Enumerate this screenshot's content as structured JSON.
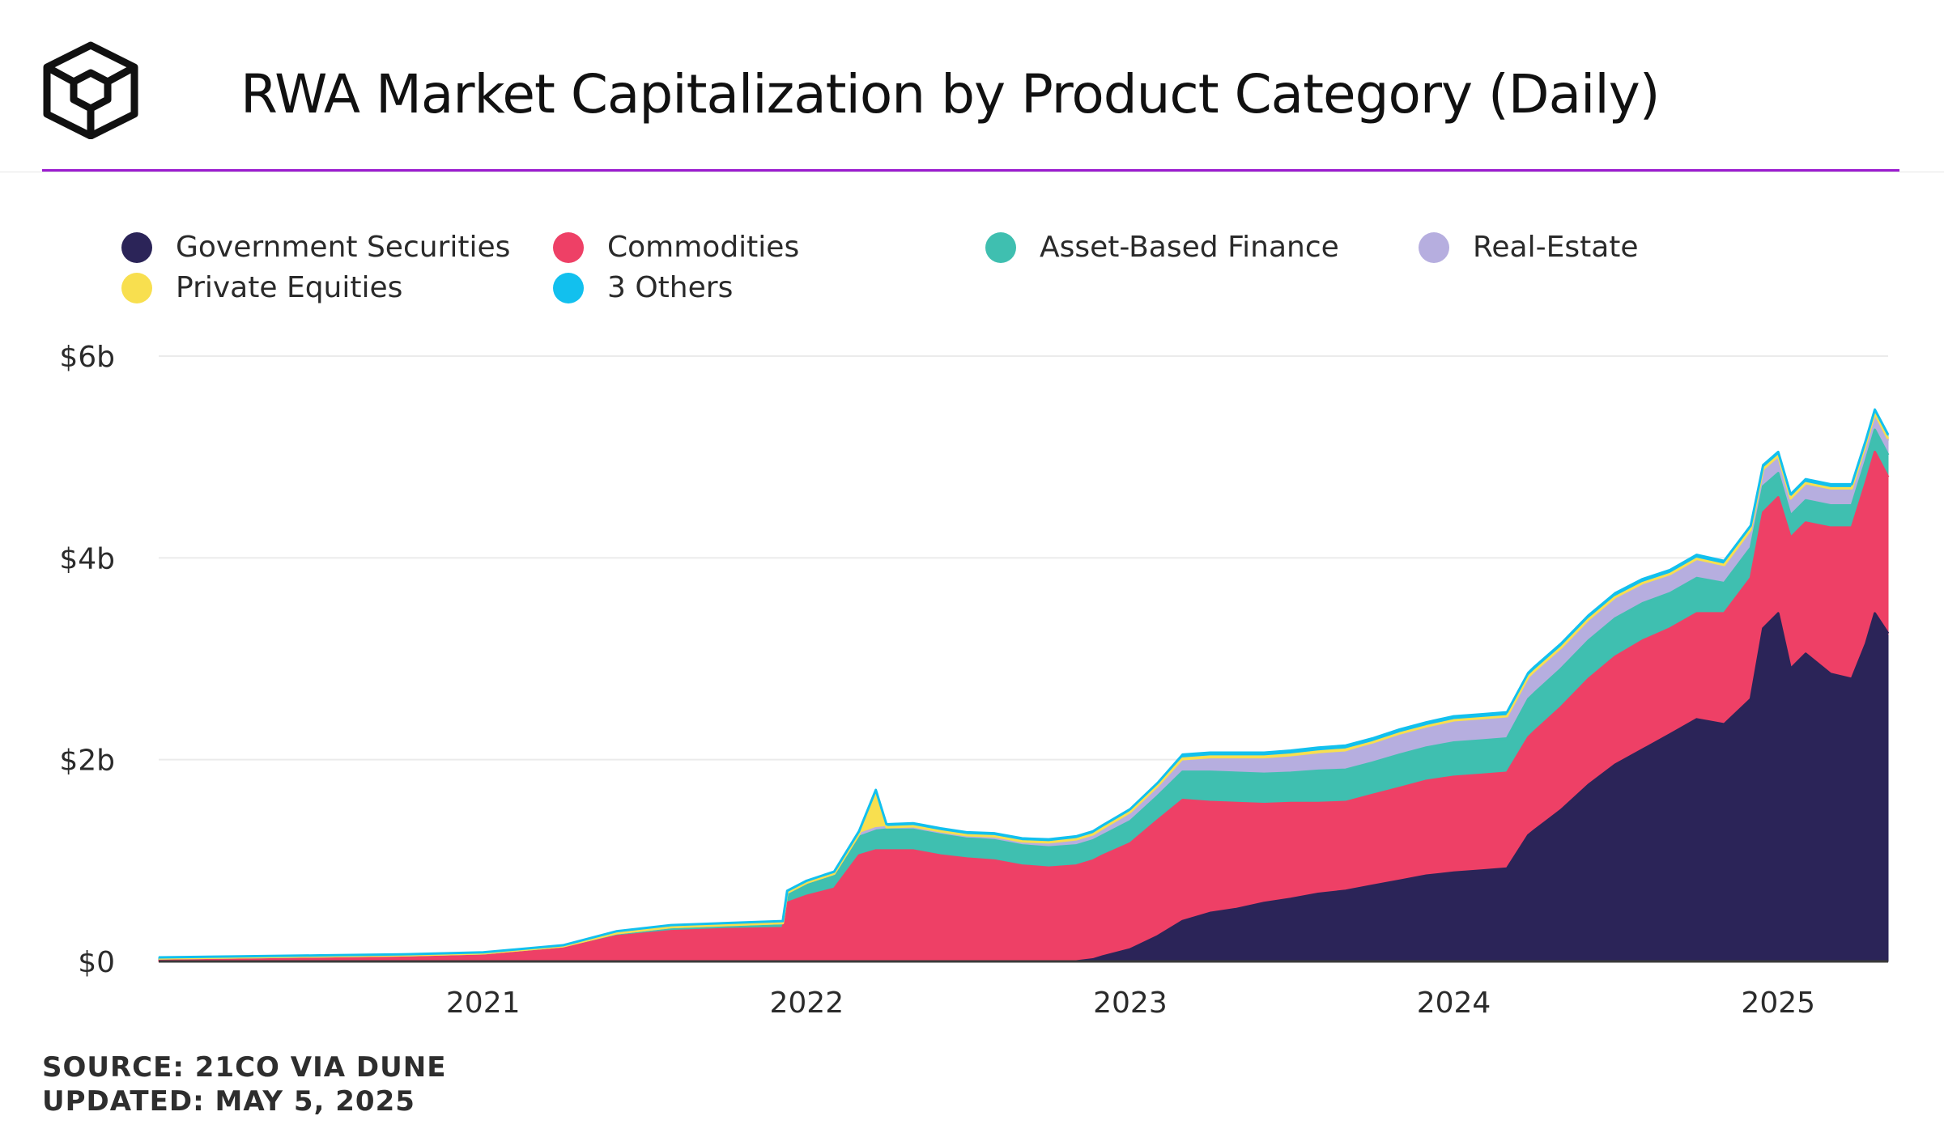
{
  "header": {
    "title": "RWA Market Capitalization by Product Category (Daily)",
    "logo_icon": "cube-icon"
  },
  "colors": {
    "accent_rule": "#9b1ccf",
    "gridline": "#ebebeb",
    "axis_text": "#2b2b2b"
  },
  "chart_data": {
    "type": "area",
    "stacked": true,
    "title": "RWA Market Capitalization by Product Category (Daily)",
    "x_axis": {
      "type": "date",
      "range": [
        "2020-01-01",
        "2025-05-05"
      ],
      "tick_labels": [
        "2021",
        "2022",
        "2023",
        "2024",
        "2025"
      ],
      "ticks": [
        "2021-01-01",
        "2022-01-01",
        "2023-01-01",
        "2024-01-01",
        "2025-01-01"
      ]
    },
    "y_axis": {
      "unit": "USD billions",
      "range": [
        0,
        6
      ],
      "tick_labels": [
        "$0",
        "$2b",
        "$4b",
        "$6b"
      ],
      "ticks": [
        0,
        2,
        4,
        6
      ]
    },
    "grid": true,
    "legend_position": "top",
    "x": [
      "2020-01-01",
      "2020-04-01",
      "2020-07-01",
      "2020-10-01",
      "2021-01-01",
      "2021-04-01",
      "2021-06-01",
      "2021-08-01",
      "2021-10-01",
      "2021-12-05",
      "2021-12-10",
      "2022-01-01",
      "2022-02-01",
      "2022-03-01",
      "2022-03-20",
      "2022-04-01",
      "2022-05-01",
      "2022-06-01",
      "2022-07-01",
      "2022-08-01",
      "2022-09-01",
      "2022-10-01",
      "2022-11-01",
      "2022-11-20",
      "2022-12-01",
      "2023-01-01",
      "2023-02-01",
      "2023-03-01",
      "2023-04-01",
      "2023-05-01",
      "2023-06-01",
      "2023-07-01",
      "2023-08-01",
      "2023-09-01",
      "2023-10-01",
      "2023-11-01",
      "2023-12-01",
      "2024-01-01",
      "2024-02-01",
      "2024-03-01",
      "2024-03-25",
      "2024-04-01",
      "2024-05-01",
      "2024-06-01",
      "2024-07-01",
      "2024-08-01",
      "2024-09-01",
      "2024-10-01",
      "2024-11-01",
      "2024-12-01",
      "2024-12-15",
      "2025-01-01",
      "2025-01-15",
      "2025-02-01",
      "2025-03-01",
      "2025-03-25",
      "2025-04-10",
      "2025-04-20",
      "2025-05-05"
    ],
    "series": [
      {
        "name": "Government Securities",
        "color": "#2b2458",
        "values": [
          0,
          0,
          0,
          0,
          0,
          0,
          0,
          0,
          0,
          0,
          0,
          0,
          0,
          0,
          0,
          0,
          0,
          0,
          0,
          0,
          0,
          0,
          0,
          0.02,
          0.05,
          0.12,
          0.25,
          0.4,
          0.48,
          0.52,
          0.58,
          0.62,
          0.67,
          0.7,
          0.75,
          0.8,
          0.85,
          0.88,
          0.9,
          0.92,
          1.25,
          1.3,
          1.5,
          1.75,
          1.95,
          2.1,
          2.25,
          2.4,
          2.35,
          2.6,
          3.3,
          3.45,
          2.9,
          3.05,
          2.85,
          2.8,
          3.15,
          3.45,
          3.25
        ]
      },
      {
        "name": "Commodities",
        "color": "#ee4066",
        "values": [
          0.02,
          0.03,
          0.04,
          0.05,
          0.07,
          0.13,
          0.25,
          0.3,
          0.32,
          0.33,
          0.58,
          0.65,
          0.72,
          1.05,
          1.1,
          1.1,
          1.1,
          1.05,
          1.02,
          1.0,
          0.95,
          0.93,
          0.95,
          0.98,
          1.0,
          1.05,
          1.15,
          1.2,
          1.1,
          1.05,
          0.98,
          0.95,
          0.9,
          0.88,
          0.9,
          0.92,
          0.94,
          0.95,
          0.95,
          0.95,
          0.97,
          0.98,
          1.02,
          1.05,
          1.07,
          1.08,
          1.05,
          1.05,
          1.1,
          1.2,
          1.15,
          1.15,
          1.3,
          1.3,
          1.45,
          1.5,
          1.6,
          1.6,
          1.55
        ]
      },
      {
        "name": "Asset-Based Finance",
        "color": "#3fbfb0",
        "values": [
          0.01,
          0.01,
          0.01,
          0.01,
          0.01,
          0.02,
          0.03,
          0.04,
          0.04,
          0.05,
          0.1,
          0.12,
          0.14,
          0.2,
          0.21,
          0.21,
          0.21,
          0.21,
          0.2,
          0.2,
          0.2,
          0.2,
          0.2,
          0.2,
          0.2,
          0.22,
          0.24,
          0.28,
          0.3,
          0.3,
          0.3,
          0.3,
          0.32,
          0.32,
          0.32,
          0.33,
          0.33,
          0.34,
          0.34,
          0.34,
          0.38,
          0.38,
          0.38,
          0.38,
          0.38,
          0.37,
          0.35,
          0.35,
          0.3,
          0.3,
          0.26,
          0.24,
          0.22,
          0.22,
          0.22,
          0.22,
          0.22,
          0.22,
          0.22
        ]
      },
      {
        "name": "Real-Estate",
        "color": "#b6aedf",
        "values": [
          0,
          0,
          0,
          0,
          0,
          0,
          0,
          0,
          0,
          0,
          0,
          0.01,
          0.01,
          0.01,
          0.01,
          0.02,
          0.02,
          0.02,
          0.02,
          0.03,
          0.03,
          0.04,
          0.05,
          0.05,
          0.06,
          0.07,
          0.08,
          0.1,
          0.12,
          0.13,
          0.14,
          0.15,
          0.16,
          0.17,
          0.18,
          0.19,
          0.19,
          0.2,
          0.2,
          0.2,
          0.2,
          0.2,
          0.19,
          0.19,
          0.19,
          0.18,
          0.17,
          0.17,
          0.16,
          0.16,
          0.15,
          0.15,
          0.15,
          0.15,
          0.15,
          0.15,
          0.14,
          0.14,
          0.14
        ]
      },
      {
        "name": "Private Equities",
        "color": "#f8df4f",
        "values": [
          0,
          0,
          0,
          0,
          0,
          0,
          0,
          0,
          0,
          0,
          0,
          0,
          0,
          0,
          0.35,
          0,
          0.01,
          0.01,
          0.01,
          0.01,
          0.01,
          0.01,
          0.01,
          0.01,
          0.01,
          0.02,
          0.02,
          0.03,
          0.03,
          0.03,
          0.03,
          0.03,
          0.03,
          0.03,
          0.02,
          0.02,
          0.02,
          0.02,
          0.02,
          0.02,
          0.02,
          0.02,
          0.02,
          0.02,
          0.02,
          0.02,
          0.02,
          0.02,
          0.02,
          0.02,
          0.02,
          0.02,
          0.02,
          0.02,
          0.02,
          0.02,
          0.02,
          0.02,
          0.02
        ]
      },
      {
        "name": "3 Others",
        "color": "#12c0ee",
        "values": [
          0.01,
          0.01,
          0.01,
          0.01,
          0.01,
          0.01,
          0.02,
          0.02,
          0.02,
          0.02,
          0.02,
          0.02,
          0.02,
          0.03,
          0.03,
          0.03,
          0.03,
          0.03,
          0.03,
          0.03,
          0.03,
          0.03,
          0.03,
          0.03,
          0.03,
          0.03,
          0.03,
          0.04,
          0.04,
          0.04,
          0.04,
          0.04,
          0.04,
          0.04,
          0.04,
          0.04,
          0.04,
          0.04,
          0.04,
          0.04,
          0.04,
          0.04,
          0.04,
          0.04,
          0.04,
          0.04,
          0.04,
          0.04,
          0.04,
          0.04,
          0.04,
          0.04,
          0.04,
          0.04,
          0.04,
          0.04,
          0.04,
          0.04,
          0.04
        ]
      }
    ]
  },
  "legend": {
    "items": [
      {
        "label": "Government Securities",
        "color": "#2b2458"
      },
      {
        "label": "Commodities",
        "color": "#ee4066"
      },
      {
        "label": "Asset-Based Finance",
        "color": "#3fbfb0"
      },
      {
        "label": "Real-Estate",
        "color": "#b6aedf"
      },
      {
        "label": "Private Equities",
        "color": "#f8df4f"
      },
      {
        "label": "3 Others",
        "color": "#12c0ee"
      }
    ]
  },
  "footer": {
    "source": "SOURCE: 21CO VIA DUNE",
    "updated": "UPDATED: MAY 5, 2025"
  }
}
